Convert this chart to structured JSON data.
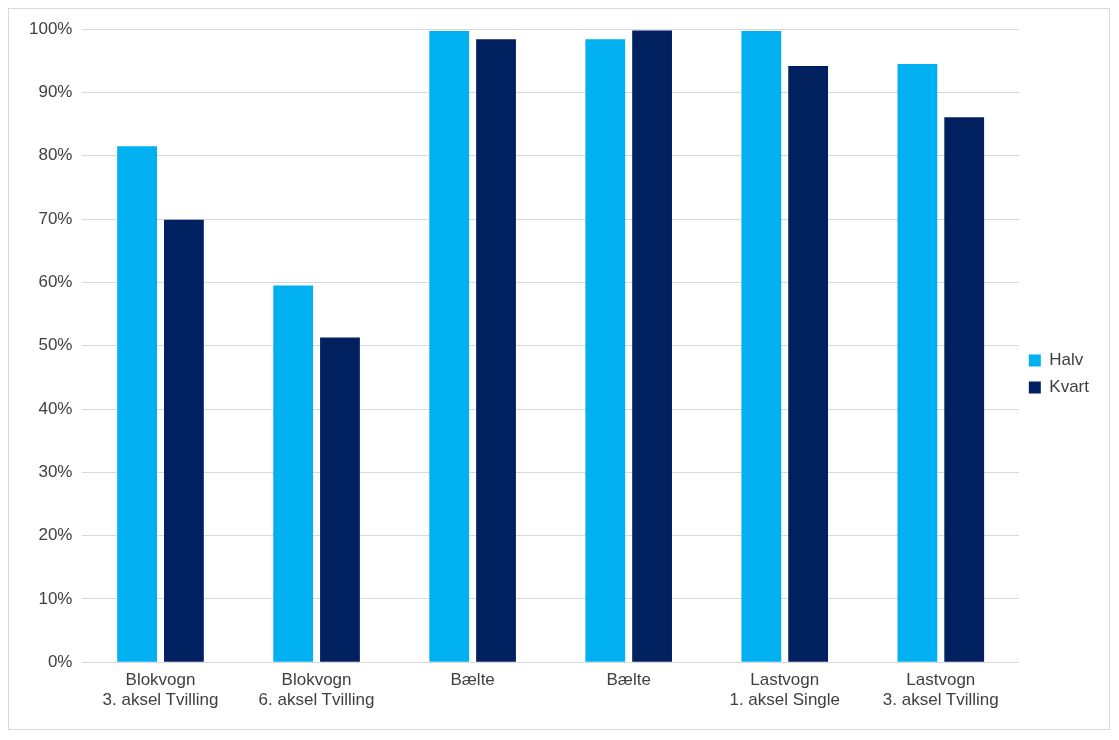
{
  "chart_data": {
    "type": "bar",
    "categories": [
      "Blokvogn 3. aksel Tvilling",
      "Blokvogn 6. aksel Tvilling",
      "Bælte",
      "Bælte",
      "Lastvogn 1. aksel Single",
      "Lastvogn 3. aksel Tvilling"
    ],
    "series": [
      {
        "name": "Halv",
        "color": "#00b0f0",
        "values": [
          81.5,
          59.5,
          99.7,
          98.4,
          99.7,
          94.5
        ]
      },
      {
        "name": "Kvart",
        "color": "#002060",
        "values": [
          69.9,
          51.3,
          98.4,
          99.8,
          94.2,
          86.1
        ]
      }
    ],
    "ylim": [
      0,
      100
    ],
    "yticks": [
      {
        "value": 0,
        "label": "0%"
      },
      {
        "value": 10,
        "label": "10%"
      },
      {
        "value": 20,
        "label": "20%"
      },
      {
        "value": 30,
        "label": "30%"
      },
      {
        "value": 40,
        "label": "40%"
      },
      {
        "value": 50,
        "label": "50%"
      },
      {
        "value": 60,
        "label": "60%"
      },
      {
        "value": 70,
        "label": "70%"
      },
      {
        "value": 80,
        "label": "80%"
      },
      {
        "value": 90,
        "label": "90%"
      },
      {
        "value": 100,
        "label": "100%"
      }
    ],
    "grid": "y",
    "legend": "right"
  }
}
